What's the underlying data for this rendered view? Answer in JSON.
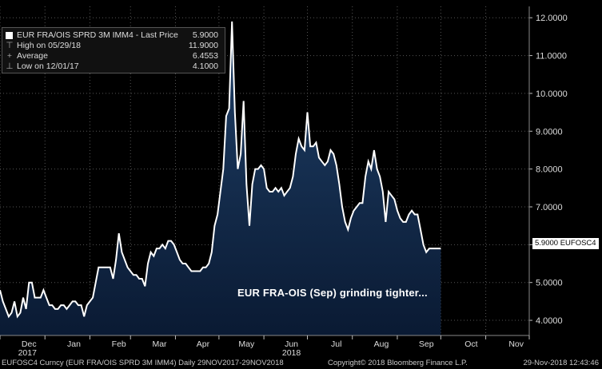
{
  "legend": {
    "title": "EUR FRA/OIS SPRD 3M IMM4 - Last Price",
    "last_price": "5.9000",
    "high_label": "High on 05/29/18",
    "high_value": "11.9000",
    "avg_label": "Average",
    "avg_value": "6.4553",
    "low_label": "Low on 12/01/17",
    "low_value": "4.1000"
  },
  "annotation": "EUR FRA-OIS (Sep) grinding tighter...",
  "last_tag": "5.9000 EUFOSC4",
  "footer": {
    "left": "EUFOSC4 Curncy (EUR FRA/OIS SPRD 3M IMM4)  Daily 29NOV2017-29NOV2018",
    "center": "Copyright© 2018 Bloomberg Finance L.P.",
    "right": "29-Nov-2018 12:43:46"
  },
  "colors": {
    "background": "#000000",
    "line": "#ffffff",
    "area_top": "#1c3a5e",
    "area_bottom": "#0a1830",
    "grid": "#555555"
  },
  "chart_data": {
    "type": "area",
    "title": "",
    "xlabel": "",
    "ylabel": "",
    "ylim": [
      3.6,
      12.3
    ],
    "y_ticks": [
      "4.0000",
      "5.0000",
      "6.0000",
      "7.0000",
      "8.0000",
      "9.0000",
      "10.0000",
      "11.0000",
      "12.0000"
    ],
    "x_ticks": [
      {
        "label": "Dec",
        "sub": "2017",
        "day": 5
      },
      {
        "label": "Jan",
        "sub": "",
        "day": 36
      },
      {
        "label": "Feb",
        "sub": "",
        "day": 67
      },
      {
        "label": "Mar",
        "sub": "",
        "day": 95
      },
      {
        "label": "Apr",
        "sub": "",
        "day": 125
      },
      {
        "label": "May",
        "sub": "",
        "day": 155
      },
      {
        "label": "Jun",
        "sub": "2018",
        "day": 186
      },
      {
        "label": "Jul",
        "sub": "",
        "day": 217
      },
      {
        "label": "Aug",
        "sub": "",
        "day": 248
      },
      {
        "label": "Sep",
        "sub": "",
        "day": 279
      },
      {
        "label": "Oct",
        "sub": "",
        "day": 310
      },
      {
        "label": "Nov",
        "sub": "",
        "day": 341
      }
    ],
    "x_range_days": [
      0,
      365
    ],
    "grid": true,
    "legend_position": "top-left",
    "series": [
      {
        "name": "EUR FRA/OIS SPRD 3M IMM4 - Last Price",
        "x_day": [
          0,
          2,
          4,
          6,
          8,
          10,
          12,
          14,
          16,
          18,
          20,
          22,
          24,
          26,
          28,
          30,
          32,
          34,
          36,
          38,
          40,
          42,
          44,
          46,
          48,
          50,
          52,
          54,
          56,
          58,
          60,
          62,
          64,
          66,
          68,
          70,
          72,
          74,
          76,
          78,
          80,
          82,
          84,
          86,
          88,
          90,
          92,
          94,
          96,
          98,
          100,
          102,
          104,
          106,
          108,
          110,
          112,
          114,
          116,
          118,
          120,
          122,
          124,
          126,
          128,
          130,
          132,
          134,
          136,
          138,
          140,
          142,
          144,
          146,
          148,
          150,
          152,
          154,
          156,
          158,
          160,
          162,
          164,
          166,
          168,
          170,
          172,
          174,
          176,
          178,
          180,
          182,
          184,
          186,
          188,
          190,
          192,
          194,
          196,
          198,
          200,
          202,
          204,
          206,
          208,
          210,
          212,
          214,
          216,
          218,
          220,
          222,
          224,
          226,
          228,
          230,
          232,
          234,
          236,
          238,
          240,
          242,
          244,
          246,
          248,
          250,
          252,
          254,
          256,
          258,
          260,
          262,
          264,
          266,
          268,
          270,
          272,
          274,
          276,
          278,
          280,
          282,
          284,
          286,
          288,
          290,
          292,
          294,
          296,
          298,
          300,
          302,
          304,
          306,
          308,
          310,
          312,
          314,
          316,
          318,
          320,
          322,
          324,
          326,
          328,
          330,
          332,
          334,
          336,
          338,
          340,
          342,
          344,
          346,
          348,
          350,
          352,
          354,
          356,
          358,
          360,
          362
        ],
        "values": [
          4.8,
          4.5,
          4.3,
          4.1,
          4.2,
          4.5,
          4.1,
          4.2,
          4.6,
          4.3,
          5.0,
          5.0,
          4.6,
          4.6,
          4.6,
          4.8,
          4.6,
          4.4,
          4.4,
          4.3,
          4.3,
          4.4,
          4.4,
          4.3,
          4.4,
          4.5,
          4.5,
          4.4,
          4.4,
          4.1,
          4.4,
          4.5,
          4.6,
          5.0,
          5.4,
          5.4,
          5.4,
          5.4,
          5.4,
          5.1,
          5.6,
          6.3,
          5.8,
          5.6,
          5.4,
          5.3,
          5.2,
          5.2,
          5.1,
          5.1,
          4.9,
          5.5,
          5.8,
          5.7,
          5.9,
          5.9,
          6.0,
          5.9,
          6.1,
          6.1,
          6.0,
          5.8,
          5.6,
          5.5,
          5.5,
          5.4,
          5.3,
          5.3,
          5.3,
          5.3,
          5.4,
          5.4,
          5.5,
          5.8,
          6.5,
          6.8,
          7.4,
          8.0,
          9.4,
          9.6,
          11.9,
          9.5,
          8.0,
          8.4,
          9.8,
          7.6,
          6.5,
          7.6,
          8.0,
          8.0,
          8.1,
          8.0,
          7.5,
          7.4,
          7.4,
          7.5,
          7.4,
          7.5,
          7.3,
          7.4,
          7.5,
          7.8,
          8.4,
          8.8,
          8.6,
          8.5,
          9.5,
          8.6,
          8.6,
          8.7,
          8.3,
          8.2,
          8.1,
          8.2,
          8.5,
          8.4,
          8.1,
          7.6,
          7.0,
          6.6,
          6.4,
          6.7,
          6.9,
          7.0,
          7.1,
          7.1,
          7.8,
          8.2,
          8.0,
          8.5,
          8.0,
          7.8,
          7.4,
          6.6,
          7.4,
          7.3,
          7.2,
          6.9,
          6.7,
          6.6,
          6.6,
          6.8,
          6.9,
          6.8,
          6.8,
          6.4,
          6.0,
          5.8,
          5.9,
          5.9,
          5.9,
          5.9,
          5.9,
          5.9,
          5.9,
          5.9,
          5.9,
          5.9,
          5.9,
          5.9,
          5.9,
          5.9,
          5.9,
          5.9,
          5.9,
          5.9,
          5.9,
          5.9,
          5.9,
          5.9,
          5.9,
          5.9,
          5.9,
          5.9,
          5.9,
          5.9,
          5.9,
          5.9,
          5.9,
          5.9,
          5.9,
          5.9
        ]
      }
    ]
  }
}
